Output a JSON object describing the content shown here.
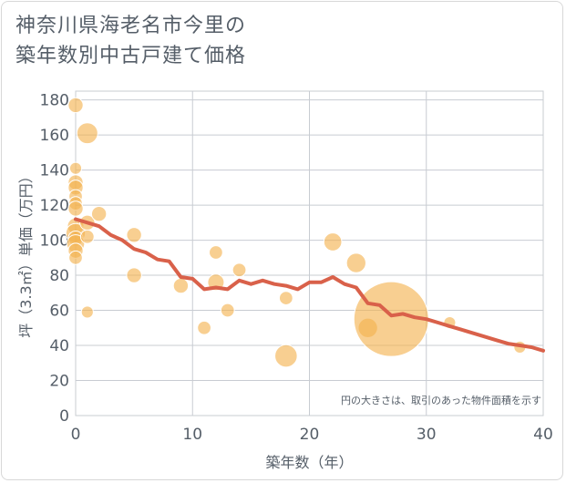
{
  "title_line1": "神奈川県海老名市今里の",
  "title_line2": "築年数別中古戸建て価格",
  "chart_data": {
    "type": "scatter",
    "xlabel": "築年数（年）",
    "ylabel": "坪（3.3㎡）単価（万円）",
    "xlim": [
      0,
      40
    ],
    "ylim": [
      0,
      185
    ],
    "xticks": [
      0,
      10,
      20,
      30,
      40
    ],
    "yticks": [
      0,
      20,
      40,
      60,
      80,
      100,
      120,
      140,
      160,
      180
    ],
    "grid": true,
    "note": "円の大きさは、取引のあった物件面積を示す",
    "bubble_color": "#f3b24e",
    "line_color": "#d9614a",
    "bubbles": [
      {
        "x": 0,
        "y": 177,
        "s": 1.0
      },
      {
        "x": 0,
        "y": 141,
        "s": 0.8
      },
      {
        "x": 0,
        "y": 133,
        "s": 1.0
      },
      {
        "x": 0,
        "y": 130,
        "s": 1.0
      },
      {
        "x": 0,
        "y": 125,
        "s": 0.9
      },
      {
        "x": 0,
        "y": 121,
        "s": 0.9
      },
      {
        "x": 0,
        "y": 118,
        "s": 1.0
      },
      {
        "x": 0,
        "y": 108,
        "s": 1.1
      },
      {
        "x": 0,
        "y": 104,
        "s": 1.3
      },
      {
        "x": 0,
        "y": 101,
        "s": 1.0
      },
      {
        "x": 0,
        "y": 98,
        "s": 1.2
      },
      {
        "x": 0,
        "y": 94,
        "s": 1.0
      },
      {
        "x": 0,
        "y": 90,
        "s": 0.9
      },
      {
        "x": 1,
        "y": 161,
        "s": 1.4
      },
      {
        "x": 1,
        "y": 110,
        "s": 1.0
      },
      {
        "x": 1,
        "y": 102,
        "s": 0.9
      },
      {
        "x": 1,
        "y": 59,
        "s": 0.8
      },
      {
        "x": 2,
        "y": 115,
        "s": 1.0
      },
      {
        "x": 5,
        "y": 103,
        "s": 1.0
      },
      {
        "x": 5,
        "y": 80,
        "s": 1.0
      },
      {
        "x": 9,
        "y": 74,
        "s": 1.0
      },
      {
        "x": 11,
        "y": 50,
        "s": 0.9
      },
      {
        "x": 12,
        "y": 93,
        "s": 0.9
      },
      {
        "x": 12,
        "y": 76,
        "s": 1.1
      },
      {
        "x": 13,
        "y": 60,
        "s": 0.9
      },
      {
        "x": 14,
        "y": 83,
        "s": 0.9
      },
      {
        "x": 18,
        "y": 67,
        "s": 0.9
      },
      {
        "x": 18,
        "y": 34,
        "s": 1.5
      },
      {
        "x": 22,
        "y": 99,
        "s": 1.2
      },
      {
        "x": 24,
        "y": 87,
        "s": 1.3
      },
      {
        "x": 25,
        "y": 50,
        "s": 1.3
      },
      {
        "x": 27,
        "y": 55,
        "s": 5.0
      },
      {
        "x": 32,
        "y": 53,
        "s": 0.8
      },
      {
        "x": 38,
        "y": 39,
        "s": 0.8
      }
    ],
    "trend": [
      [
        0,
        112
      ],
      [
        1,
        110
      ],
      [
        2,
        108
      ],
      [
        3,
        103
      ],
      [
        4,
        100
      ],
      [
        5,
        95
      ],
      [
        6,
        93
      ],
      [
        7,
        89
      ],
      [
        8,
        88
      ],
      [
        9,
        79
      ],
      [
        10,
        78
      ],
      [
        11,
        72
      ],
      [
        12,
        73
      ],
      [
        13,
        72
      ],
      [
        14,
        77
      ],
      [
        15,
        75
      ],
      [
        16,
        77
      ],
      [
        17,
        75
      ],
      [
        18,
        74
      ],
      [
        19,
        72
      ],
      [
        20,
        76
      ],
      [
        21,
        76
      ],
      [
        22,
        79
      ],
      [
        23,
        75
      ],
      [
        24,
        73
      ],
      [
        25,
        64
      ],
      [
        26,
        63
      ],
      [
        27,
        57
      ],
      [
        28,
        58
      ],
      [
        29,
        56
      ],
      [
        30,
        55
      ],
      [
        31,
        53
      ],
      [
        32,
        51
      ],
      [
        33,
        49
      ],
      [
        34,
        47
      ],
      [
        35,
        45
      ],
      [
        36,
        43
      ],
      [
        37,
        41
      ],
      [
        38,
        40
      ],
      [
        39,
        39
      ],
      [
        40,
        37
      ]
    ]
  }
}
